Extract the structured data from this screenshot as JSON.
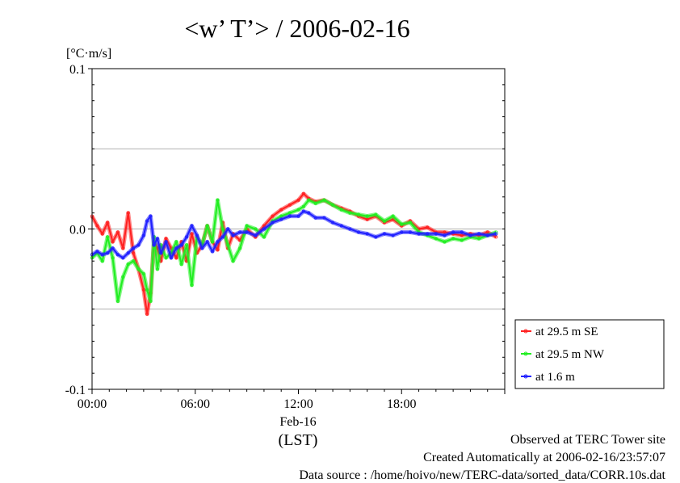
{
  "chart_data": {
    "type": "line",
    "title": "<w’ T’> / 2006-02-16",
    "ylabel": "[°C·m/s]",
    "xlabel": "(LST)",
    "date_label": "Feb-16",
    "ylim": [
      -0.1,
      0.1
    ],
    "xlim": [
      0,
      24
    ],
    "y_ticks": [
      {
        "value": 0.1,
        "label": "0.1"
      },
      {
        "value": 0.0,
        "label": "0.0"
      },
      {
        "value": -0.1,
        "label": "-0.1"
      }
    ],
    "y_gridlines": [
      0.05,
      0.0,
      -0.05
    ],
    "x_ticks": [
      {
        "value": 0,
        "label": "00:00"
      },
      {
        "value": 6,
        "label": "06:00"
      },
      {
        "value": 12,
        "label": "12:00"
      },
      {
        "value": 18,
        "label": "18:00"
      }
    ],
    "legend_position": "bottom-right, outside plot",
    "series": [
      {
        "name": "at 29.5 m SE",
        "color": "#ff2020",
        "x": [
          0,
          0.3,
          0.6,
          0.9,
          1.2,
          1.5,
          1.8,
          2.1,
          2.4,
          2.7,
          3.0,
          3.2,
          3.4,
          3.6,
          3.8,
          4.0,
          4.3,
          4.6,
          4.9,
          5.2,
          5.5,
          5.8,
          6.1,
          6.4,
          6.7,
          7.0,
          7.3,
          7.6,
          7.9,
          8.2,
          8.6,
          9.0,
          9.5,
          10.0,
          10.5,
          11.0,
          11.5,
          12.0,
          12.3,
          12.6,
          13.0,
          13.5,
          14.0,
          14.5,
          15.0,
          15.5,
          16.0,
          16.5,
          17.0,
          17.5,
          18.0,
          18.5,
          19.0,
          19.5,
          20.0,
          20.5,
          21.0,
          21.5,
          22.0,
          22.5,
          23.0,
          23.5
        ],
        "y": [
          0.008,
          0.002,
          -0.003,
          0.004,
          -0.008,
          -0.002,
          -0.012,
          0.01,
          -0.015,
          -0.025,
          -0.038,
          -0.053,
          -0.04,
          -0.008,
          -0.012,
          -0.02,
          -0.006,
          -0.012,
          -0.018,
          -0.008,
          -0.02,
          -0.003,
          -0.015,
          -0.01,
          0.002,
          -0.008,
          -0.013,
          0.004,
          -0.012,
          -0.003,
          -0.007,
          0.0,
          -0.005,
          0.002,
          0.008,
          0.012,
          0.015,
          0.018,
          0.022,
          0.019,
          0.017,
          0.018,
          0.015,
          0.013,
          0.011,
          0.008,
          0.006,
          0.008,
          0.004,
          0.006,
          0.002,
          0.005,
          0.0,
          0.001,
          -0.002,
          -0.002,
          -0.003,
          -0.004,
          -0.003,
          -0.004,
          -0.002,
          -0.005
        ]
      },
      {
        "name": "at 29.5 m NW",
        "color": "#20ee20",
        "x": [
          0,
          0.3,
          0.6,
          0.9,
          1.2,
          1.5,
          1.8,
          2.1,
          2.4,
          2.7,
          3.0,
          3.2,
          3.4,
          3.6,
          3.8,
          4.0,
          4.3,
          4.6,
          4.9,
          5.2,
          5.5,
          5.8,
          6.1,
          6.4,
          6.7,
          7.0,
          7.3,
          7.6,
          7.9,
          8.2,
          8.6,
          9.0,
          9.5,
          10.0,
          10.5,
          11.0,
          11.5,
          12.0,
          12.3,
          12.6,
          13.0,
          13.5,
          14.0,
          14.5,
          15.0,
          15.5,
          16.0,
          16.5,
          17.0,
          17.5,
          18.0,
          18.5,
          19.0,
          19.5,
          20.0,
          20.5,
          21.0,
          21.5,
          22.0,
          22.5,
          23.0,
          23.5
        ],
        "y": [
          -0.018,
          -0.015,
          -0.02,
          -0.005,
          -0.018,
          -0.045,
          -0.03,
          -0.022,
          -0.02,
          -0.025,
          -0.028,
          -0.038,
          -0.045,
          -0.005,
          -0.025,
          -0.01,
          -0.018,
          -0.015,
          -0.008,
          -0.022,
          -0.01,
          -0.035,
          -0.005,
          -0.01,
          0.002,
          -0.008,
          0.018,
          0.0,
          -0.01,
          -0.02,
          -0.012,
          0.002,
          0.0,
          -0.005,
          0.005,
          0.008,
          0.01,
          0.012,
          0.014,
          0.018,
          0.016,
          0.018,
          0.015,
          0.012,
          0.01,
          0.009,
          0.008,
          0.009,
          0.005,
          0.008,
          0.003,
          0.004,
          -0.002,
          -0.004,
          -0.006,
          -0.008,
          -0.006,
          -0.007,
          -0.005,
          -0.006,
          -0.004,
          -0.002
        ]
      },
      {
        "name": "at 1.6 m",
        "color": "#2020ff",
        "x": [
          0,
          0.3,
          0.6,
          0.9,
          1.2,
          1.5,
          1.8,
          2.1,
          2.4,
          2.7,
          3.0,
          3.2,
          3.4,
          3.6,
          3.8,
          4.0,
          4.3,
          4.6,
          4.9,
          5.2,
          5.5,
          5.8,
          6.1,
          6.4,
          6.7,
          7.0,
          7.3,
          7.6,
          7.9,
          8.2,
          8.6,
          9.0,
          9.5,
          10.0,
          10.5,
          11.0,
          11.5,
          12.0,
          12.3,
          12.6,
          13.0,
          13.5,
          14.0,
          14.5,
          15.0,
          15.5,
          16.0,
          16.5,
          17.0,
          17.5,
          18.0,
          18.5,
          19.0,
          19.5,
          20.0,
          20.5,
          21.0,
          21.5,
          22.0,
          22.5,
          23.0,
          23.5
        ],
        "y": [
          -0.016,
          -0.014,
          -0.016,
          -0.015,
          -0.012,
          -0.016,
          -0.018,
          -0.015,
          -0.012,
          -0.01,
          -0.004,
          0.005,
          0.008,
          -0.01,
          -0.006,
          -0.015,
          -0.008,
          -0.018,
          -0.012,
          -0.01,
          -0.005,
          0.002,
          -0.004,
          -0.012,
          -0.008,
          -0.014,
          -0.008,
          -0.005,
          0.0,
          -0.004,
          -0.002,
          -0.002,
          -0.004,
          0.0,
          0.004,
          0.006,
          0.008,
          0.008,
          0.011,
          0.01,
          0.007,
          0.007,
          0.004,
          0.002,
          0.0,
          -0.002,
          -0.003,
          -0.005,
          -0.003,
          -0.004,
          -0.002,
          -0.002,
          -0.003,
          -0.003,
          -0.003,
          -0.004,
          -0.002,
          -0.002,
          -0.004,
          -0.003,
          -0.004,
          -0.003
        ]
      }
    ]
  },
  "footer": {
    "line1": "Observed at TERC Tower site",
    "line2": "Created Automatically at 2006-02-16/23:57:07",
    "line3": "Data source : /home/hoivo/new/TERC-data/sorted_data/CORR.10s.dat"
  }
}
